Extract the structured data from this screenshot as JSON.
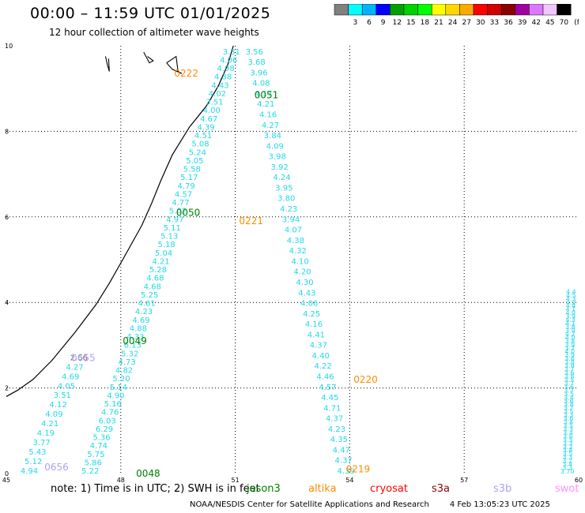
{
  "header": {
    "title": "00:00 – 11:59 UTC 01/01/2025",
    "subtitle": "12 hour collection of altimeter wave heights"
  },
  "legend": {
    "unit": "(ft)",
    "bins": [
      {
        "label": "",
        "color": "#808080"
      },
      {
        "label": "3",
        "color": "#00ffff"
      },
      {
        "label": "6",
        "color": "#00b4ff"
      },
      {
        "label": "9",
        "color": "#0000ff"
      },
      {
        "label": "12",
        "color": "#00a000"
      },
      {
        "label": "15",
        "color": "#00d200"
      },
      {
        "label": "18",
        "color": "#00ff00"
      },
      {
        "label": "21",
        "color": "#ffff00"
      },
      {
        "label": "24",
        "color": "#ffd700"
      },
      {
        "label": "27",
        "color": "#ffaa00"
      },
      {
        "label": "30",
        "color": "#ff0000"
      },
      {
        "label": "33",
        "color": "#d00000"
      },
      {
        "label": "36",
        "color": "#8b0000"
      },
      {
        "label": "39",
        "color": "#a000a0"
      },
      {
        "label": "42",
        "color": "#dc78ff"
      },
      {
        "label": "45",
        "color": "#f0c8ff"
      },
      {
        "label": "70",
        "color": "#000000"
      }
    ]
  },
  "map": {
    "lon_range": [
      45,
      60
    ],
    "lat_range": [
      0,
      10
    ],
    "x_ticks": [
      "45",
      "48",
      "51",
      "54",
      "57",
      "60"
    ],
    "y_ticks": [
      "0",
      "2",
      "4",
      "6",
      "8",
      "10"
    ],
    "grid": "dotted",
    "colors": {
      "wave": "#22d8e8",
      "jason3": "#008000",
      "altika": "#ff8c00",
      "cryosat": "#ff0000",
      "s3a": "#8b0000",
      "s3b": "#b0a0f0",
      "swot": "#ff90ff",
      "old": "#707070"
    },
    "pass_labels": [
      {
        "text": "0222",
        "lon": 49.4,
        "lat": 9.35,
        "sat": "altika"
      },
      {
        "text": "0051",
        "lon": 51.5,
        "lat": 8.85,
        "sat": "jason3"
      },
      {
        "text": "0050",
        "lon": 49.45,
        "lat": 6.1,
        "sat": "jason3"
      },
      {
        "text": "0221",
        "lon": 51.1,
        "lat": 5.9,
        "sat": "altika"
      },
      {
        "text": "0049",
        "lon": 48.05,
        "lat": 3.1,
        "sat": "jason3"
      },
      {
        "text": "0655",
        "lon": 46.7,
        "lat": 2.7,
        "sat": "s3b"
      },
      {
        "text": "0220",
        "lon": 54.1,
        "lat": 2.2,
        "sat": "altika"
      },
      {
        "text": "0656",
        "lon": 46.0,
        "lat": 0.15,
        "sat": "s3b"
      },
      {
        "text": "0048",
        "lon": 48.4,
        "lat": 0.0,
        "sat": "jason3"
      },
      {
        "text": "0219",
        "lon": 53.9,
        "lat": 0.1,
        "sat": "altika"
      }
    ],
    "tracks": [
      {
        "sat": "jason3",
        "lon0": 50.9,
        "lat0": 9.8,
        "lon1": 47.2,
        "lat1": 0.0,
        "values": [
          "3.31",
          "4.06",
          "4.98",
          "4.38",
          "4.43",
          "4.02",
          "3.51",
          "4.00",
          "4.67",
          "4.39",
          "4.51",
          "5.08",
          "5.24",
          "5.05",
          "5.58",
          "5.17",
          "4.79",
          "4.57",
          "4.77",
          "5.02",
          "4.97",
          "5.11",
          "5.13",
          "5.18",
          "5.04",
          "4.21",
          "5.28",
          "4.68",
          "4.68",
          "5.25",
          "4.61",
          "4.23",
          "4.69",
          "4.88",
          "4.33",
          "6.13",
          "5.32",
          "4.73",
          "4.82",
          "5.20",
          "5.14",
          "4.90",
          "5.16",
          "4.76",
          "6.03",
          "6.29",
          "5.36",
          "4.74",
          "5.75",
          "5.86",
          "5.22"
        ]
      },
      {
        "sat": "altika",
        "lon0": 51.5,
        "lat0": 9.8,
        "lon1": 53.9,
        "lat1": 0.0,
        "values": [
          "3.56",
          "3.68",
          "3.96",
          "4.08",
          "4.17",
          "4.21",
          "4.16",
          "4.27",
          "3.84",
          "4.09",
          "3.98",
          "3.92",
          "4.24",
          "3.95",
          "3.80",
          "4.23",
          "3.94",
          "4.07",
          "4.38",
          "4.32",
          "4.10",
          "4.20",
          "4.30",
          "4.43",
          "4.06",
          "4.25",
          "4.16",
          "4.41",
          "4.37",
          "4.40",
          "4.22",
          "4.46",
          "4.57",
          "4.45",
          "4.71",
          "4.37",
          "4.23",
          "4.35",
          "4.47",
          "4.37",
          "4.39"
        ]
      },
      {
        "sat": "s3b",
        "lon0": 46.9,
        "lat0": 2.65,
        "lon1": 45.6,
        "lat1": 0.0,
        "values": [
          "2.66",
          "4.27",
          "4.69",
          "4.05",
          "3.51",
          "4.12",
          "4.09",
          "4.21",
          "4.19",
          "3.77",
          "5.43",
          "5.12",
          "4.94"
        ]
      },
      {
        "sat": "edge",
        "lon0": 59.8,
        "lat0": 4.2,
        "lon1": 59.7,
        "lat1": 0.0,
        "values": [
          "4.4",
          "4.5",
          "4.3",
          "4.2",
          "4.4",
          "4.1",
          "4.0",
          "3.9",
          "4.3",
          "4.1",
          "3.8",
          "3.9",
          "4.2",
          "4.0",
          "3.8",
          "3.9",
          "3.7",
          "4.0",
          "3.9",
          "3.6",
          "3.8",
          "3.9",
          "3.7",
          "3.6",
          "3.8",
          "3.5",
          "3.7",
          "3.6",
          "3.7",
          "3.5",
          "3.4",
          "3.6",
          "3.8",
          "3.7",
          "3.5",
          "3.3",
          "3.6",
          "3.4",
          "3.5",
          "3.3",
          "3.4",
          "3.6",
          "3.5",
          "3.3",
          "3.2",
          "3.4",
          "3.5",
          "3.3",
          "3.2",
          "3.4",
          "3.3",
          "3.70"
        ]
      }
    ]
  },
  "note": {
    "text": "note:  1) Time is in UTC; 2) SWH is in feet",
    "sats": [
      {
        "name": "jason3",
        "color": "#008000"
      },
      {
        "name": "altika",
        "color": "#ff8c00"
      },
      {
        "name": "cryosat",
        "color": "#ff0000"
      },
      {
        "name": "s3a",
        "color": "#8b0000"
      },
      {
        "name": "s3b",
        "color": "#b0a0f0"
      },
      {
        "name": "swot",
        "color": "#ff90ff"
      }
    ]
  },
  "footer": {
    "org": "NOAA/NESDIS Center for Satellite Applications and Research",
    "timestamp": "4 Feb 13:05:23 UTC 2025"
  }
}
